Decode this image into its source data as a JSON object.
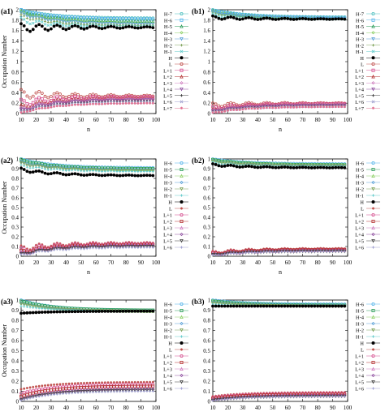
{
  "chart_data": [
    {
      "panel": "(a1)",
      "type": "scatter",
      "xlabel": "n",
      "ylabel": "Occupation Number",
      "xlim": [
        10,
        100
      ],
      "ylim": [
        0,
        2
      ],
      "xticks": [
        10,
        20,
        30,
        40,
        50,
        60,
        70,
        80,
        90,
        100
      ],
      "yticks": [
        0,
        0.2,
        0.4,
        0.6,
        0.8,
        1,
        1.2,
        1.4,
        1.6,
        1.8,
        2
      ],
      "ytick_labels": [
        "0",
        "0.2",
        "0.4",
        "0.6",
        "0.8",
        "1",
        "1.2",
        "1.4",
        "1.6",
        "1.8",
        "2"
      ],
      "legend": [
        "H-7",
        "H-6",
        "H-5",
        "H-4",
        "H-3",
        "H-2",
        "H-1",
        "H",
        "L",
        "L+1",
        "L+2",
        "L+3",
        "L+4",
        "L+5",
        "L+6",
        "L+7"
      ],
      "occupied": [
        {
          "name": "H-7",
          "start": 2.0,
          "end": 1.84,
          "amp": 0.0
        },
        {
          "name": "H-6",
          "start": 1.99,
          "end": 1.82,
          "amp": 0.01
        },
        {
          "name": "H-5",
          "start": 1.97,
          "end": 1.78,
          "amp": 0.01
        },
        {
          "name": "H-4",
          "start": 1.95,
          "end": 1.74,
          "amp": 0.02
        },
        {
          "name": "H-3",
          "start": 1.92,
          "end": 1.72,
          "amp": 0.02
        },
        {
          "name": "H-2",
          "start": 1.88,
          "end": 1.7,
          "amp": 0.03
        },
        {
          "name": "H-1",
          "start": 1.8,
          "end": 1.68,
          "amp": 0.05
        },
        {
          "name": "H",
          "start": 1.65,
          "end": 1.66,
          "amp": 0.08
        }
      ],
      "unoccupied": [
        {
          "name": "L",
          "start": 0.38,
          "end": 0.34,
          "amp": 0.08
        },
        {
          "name": "L+1",
          "start": 0.2,
          "end": 0.32,
          "amp": 0.07
        },
        {
          "name": "L+2",
          "start": 0.12,
          "end": 0.3,
          "amp": 0.05
        },
        {
          "name": "L+3",
          "start": 0.08,
          "end": 0.28,
          "amp": 0.04
        },
        {
          "name": "L+4",
          "start": 0.05,
          "end": 0.26,
          "amp": 0.03
        },
        {
          "name": "L+5",
          "start": 0.03,
          "end": 0.24,
          "amp": 0.02
        },
        {
          "name": "L+6",
          "start": 0.02,
          "end": 0.22,
          "amp": 0.02
        },
        {
          "name": "L+7",
          "start": 0.01,
          "end": 0.2,
          "amp": 0.01
        }
      ]
    },
    {
      "panel": "(b1)",
      "type": "scatter",
      "xlabel": "n",
      "ylabel": "",
      "xlim": [
        10,
        100
      ],
      "ylim": [
        0,
        2
      ],
      "xticks": [
        10,
        20,
        30,
        40,
        50,
        60,
        70,
        80,
        90,
        100
      ],
      "yticks": [
        0,
        0.2,
        0.4,
        0.6,
        0.8,
        1,
        1.2,
        1.4,
        1.6,
        1.8,
        2
      ],
      "ytick_labels": [
        "0",
        "0.2",
        "0.4",
        "0.6",
        "0.8",
        "1",
        "1.2",
        "1.4",
        "1.6",
        "1.8",
        "2"
      ],
      "legend": [
        "H-7",
        "H-6",
        "H-5",
        "H-4",
        "H-3",
        "H-2",
        "H-1",
        "H",
        "L",
        "L+1",
        "L+2",
        "L+3",
        "L+4",
        "L+5",
        "L+6",
        "L+7"
      ],
      "occupied": [
        {
          "name": "H-7",
          "start": 2.0,
          "end": 1.86,
          "amp": 0.0
        },
        {
          "name": "H-6",
          "start": 1.99,
          "end": 1.85,
          "amp": 0.0
        },
        {
          "name": "H-5",
          "start": 1.98,
          "end": 1.84,
          "amp": 0.01
        },
        {
          "name": "H-4",
          "start": 1.97,
          "end": 1.83,
          "amp": 0.01
        },
        {
          "name": "H-3",
          "start": 1.95,
          "end": 1.83,
          "amp": 0.01
        },
        {
          "name": "H-2",
          "start": 1.93,
          "end": 1.82,
          "amp": 0.01
        },
        {
          "name": "H-1",
          "start": 1.9,
          "end": 1.82,
          "amp": 0.02
        },
        {
          "name": "H",
          "start": 1.85,
          "end": 1.82,
          "amp": 0.03
        }
      ],
      "unoccupied": [
        {
          "name": "L",
          "start": 0.16,
          "end": 0.2,
          "amp": 0.04
        },
        {
          "name": "L+1",
          "start": 0.1,
          "end": 0.19,
          "amp": 0.03
        },
        {
          "name": "L+2",
          "start": 0.07,
          "end": 0.18,
          "amp": 0.02
        },
        {
          "name": "L+3",
          "start": 0.05,
          "end": 0.17,
          "amp": 0.02
        },
        {
          "name": "L+4",
          "start": 0.04,
          "end": 0.16,
          "amp": 0.01
        },
        {
          "name": "L+5",
          "start": 0.03,
          "end": 0.15,
          "amp": 0.01
        },
        {
          "name": "L+6",
          "start": 0.02,
          "end": 0.14,
          "amp": 0.01
        },
        {
          "name": "L+7",
          "start": 0.01,
          "end": 0.13,
          "amp": 0.01
        }
      ]
    },
    {
      "panel": "(a2)",
      "type": "scatter",
      "xlabel": "n",
      "ylabel": "Occupation Number",
      "xlim": [
        10,
        100
      ],
      "ylim": [
        0,
        1
      ],
      "xticks": [
        10,
        20,
        30,
        40,
        50,
        60,
        70,
        80,
        90,
        100
      ],
      "yticks": [
        0,
        0.1,
        0.2,
        0.3,
        0.4,
        0.5,
        0.6,
        0.7,
        0.8,
        0.9,
        1
      ],
      "ytick_labels": [
        "0",
        "0.1",
        "0.2",
        "0.3",
        "0.4",
        "0.5",
        "0.6",
        "0.7",
        "0.8",
        "0.9",
        "1"
      ],
      "legend": [
        "H-6",
        "H-5",
        "H-4",
        "H-3",
        "H-2",
        "H-1",
        "H",
        "L",
        "L+1",
        "L+2",
        "L+3",
        "L+4",
        "L+5",
        "L+6"
      ],
      "occupied": [
        {
          "name": "H-6",
          "start": 1.0,
          "end": 0.91,
          "amp": 0.0
        },
        {
          "name": "H-5",
          "start": 0.99,
          "end": 0.9,
          "amp": 0.005
        },
        {
          "name": "H-4",
          "start": 0.98,
          "end": 0.89,
          "amp": 0.005
        },
        {
          "name": "H-3",
          "start": 0.97,
          "end": 0.89,
          "amp": 0.008
        },
        {
          "name": "H-2",
          "start": 0.95,
          "end": 0.88,
          "amp": 0.01
        },
        {
          "name": "H-1",
          "start": 0.93,
          "end": 0.87,
          "amp": 0.01
        },
        {
          "name": "H",
          "start": 0.89,
          "end": 0.83,
          "amp": 0.015
        }
      ],
      "unoccupied": [
        {
          "name": "L",
          "start": 0.08,
          "end": 0.14,
          "amp": 0.03
        },
        {
          "name": "L+1",
          "start": 0.06,
          "end": 0.13,
          "amp": 0.03
        },
        {
          "name": "L+2",
          "start": 0.04,
          "end": 0.12,
          "amp": 0.02
        },
        {
          "name": "L+3",
          "start": 0.03,
          "end": 0.12,
          "amp": 0.02
        },
        {
          "name": "L+4",
          "start": 0.02,
          "end": 0.11,
          "amp": 0.015
        },
        {
          "name": "L+5",
          "start": 0.015,
          "end": 0.1,
          "amp": 0.01
        },
        {
          "name": "L+6",
          "start": 0.01,
          "end": 0.09,
          "amp": 0.01
        }
      ]
    },
    {
      "panel": "(b2)",
      "type": "scatter",
      "xlabel": "n",
      "ylabel": "",
      "xlim": [
        10,
        100
      ],
      "ylim": [
        0,
        1
      ],
      "xticks": [
        10,
        20,
        30,
        40,
        50,
        60,
        70,
        80,
        90,
        100
      ],
      "yticks": [
        0,
        0.1,
        0.2,
        0.3,
        0.4,
        0.5,
        0.6,
        0.7,
        0.8,
        0.9,
        1
      ],
      "ytick_labels": [
        "0",
        "0.1",
        "0.2",
        "0.3",
        "0.4",
        "0.5",
        "0.6",
        "0.7",
        "0.8",
        "0.9",
        "1"
      ],
      "legend": [
        "H-6",
        "H-5",
        "H-4",
        "H-3",
        "H-2",
        "H-1",
        "H",
        "L",
        "L+1",
        "L+2",
        "L+3",
        "L+4",
        "L+5",
        "L+6"
      ],
      "occupied": [
        {
          "name": "H-6",
          "start": 1.0,
          "end": 0.95,
          "amp": 0.0
        },
        {
          "name": "H-5",
          "start": 0.99,
          "end": 0.94,
          "amp": 0.003
        },
        {
          "name": "H-4",
          "start": 0.99,
          "end": 0.94,
          "amp": 0.004
        },
        {
          "name": "H-3",
          "start": 0.98,
          "end": 0.93,
          "amp": 0.005
        },
        {
          "name": "H-2",
          "start": 0.97,
          "end": 0.93,
          "amp": 0.006
        },
        {
          "name": "H-1",
          "start": 0.96,
          "end": 0.92,
          "amp": 0.008
        },
        {
          "name": "H",
          "start": 0.94,
          "end": 0.91,
          "amp": 0.01
        }
      ],
      "unoccupied": [
        {
          "name": "L",
          "start": 0.04,
          "end": 0.08,
          "amp": 0.015
        },
        {
          "name": "L+1",
          "start": 0.03,
          "end": 0.07,
          "amp": 0.012
        },
        {
          "name": "L+2",
          "start": 0.025,
          "end": 0.07,
          "amp": 0.01
        },
        {
          "name": "L+3",
          "start": 0.02,
          "end": 0.06,
          "amp": 0.01
        },
        {
          "name": "L+4",
          "start": 0.015,
          "end": 0.06,
          "amp": 0.008
        },
        {
          "name": "L+5",
          "start": 0.01,
          "end": 0.05,
          "amp": 0.006
        },
        {
          "name": "L+6",
          "start": 0.008,
          "end": 0.05,
          "amp": 0.005
        }
      ]
    },
    {
      "panel": "(a3)",
      "type": "scatter",
      "xlabel": "n",
      "ylabel": "Occupation Number",
      "xlim": [
        10,
        100
      ],
      "ylim": [
        0,
        1
      ],
      "xticks": [
        10,
        20,
        30,
        40,
        50,
        60,
        70,
        80,
        90,
        100
      ],
      "yticks": [
        0,
        0.1,
        0.2,
        0.3,
        0.4,
        0.5,
        0.6,
        0.7,
        0.8,
        0.9,
        1
      ],
      "ytick_labels": [
        "0",
        "0.1",
        "0.2",
        "0.3",
        "0.4",
        "0.5",
        "0.6",
        "0.7",
        "0.8",
        "0.9",
        "1"
      ],
      "legend": [
        "H-6",
        "H-5",
        "H-4",
        "H-3",
        "H-2",
        "H-1",
        "H",
        "L",
        "L+1",
        "L+2",
        "L+3",
        "L+4",
        "L+5",
        "L+6"
      ],
      "occupied": [
        {
          "name": "H-6",
          "start": 1.0,
          "end": 0.9,
          "amp": 0.0
        },
        {
          "name": "H-5",
          "start": 0.99,
          "end": 0.9,
          "amp": 0.0
        },
        {
          "name": "H-4",
          "start": 0.98,
          "end": 0.89,
          "amp": 0.0
        },
        {
          "name": "H-3",
          "start": 0.97,
          "end": 0.89,
          "amp": 0.0
        },
        {
          "name": "H-2",
          "start": 0.96,
          "end": 0.89,
          "amp": 0.0
        },
        {
          "name": "H-1",
          "start": 0.94,
          "end": 0.89,
          "amp": 0.0
        },
        {
          "name": "H",
          "start": 0.87,
          "end": 0.89,
          "amp": 0.0
        }
      ],
      "unoccupied": [
        {
          "name": "L",
          "start": 0.12,
          "end": 0.19,
          "amp": 0.0
        },
        {
          "name": "L+1",
          "start": 0.08,
          "end": 0.17,
          "amp": 0.0
        },
        {
          "name": "L+2",
          "start": 0.05,
          "end": 0.15,
          "amp": 0.0
        },
        {
          "name": "L+3",
          "start": 0.03,
          "end": 0.13,
          "amp": 0.0
        },
        {
          "name": "L+4",
          "start": 0.02,
          "end": 0.12,
          "amp": 0.0
        },
        {
          "name": "L+5",
          "start": 0.015,
          "end": 0.11,
          "amp": 0.0
        },
        {
          "name": "L+6",
          "start": 0.01,
          "end": 0.1,
          "amp": 0.0
        }
      ]
    },
    {
      "panel": "(b3)",
      "type": "scatter",
      "xlabel": "n",
      "ylabel": "",
      "xlim": [
        10,
        100
      ],
      "ylim": [
        0,
        1
      ],
      "xticks": [
        10,
        20,
        30,
        40,
        50,
        60,
        70,
        80,
        90,
        100
      ],
      "yticks": [
        0,
        0.1,
        0.2,
        0.3,
        0.4,
        0.5,
        0.6,
        0.7,
        0.8,
        0.9,
        1
      ],
      "ytick_labels": [
        "0",
        "0.1",
        "0.2",
        "0.3",
        "0.4",
        "0.5",
        "0.6",
        "0.7",
        "0.8",
        "0.9",
        "1"
      ],
      "legend": [
        "H-6",
        "H-5",
        "H-4",
        "H-3",
        "H-2",
        "H-1",
        "H",
        "L",
        "L+1",
        "L+2",
        "L+3",
        "L+4",
        "L+5",
        "L+6"
      ],
      "occupied": [
        {
          "name": "H-6",
          "start": 1.0,
          "end": 0.96,
          "amp": 0.0
        },
        {
          "name": "H-5",
          "start": 0.99,
          "end": 0.95,
          "amp": 0.0
        },
        {
          "name": "H-4",
          "start": 0.99,
          "end": 0.95,
          "amp": 0.0
        },
        {
          "name": "H-3",
          "start": 0.98,
          "end": 0.95,
          "amp": 0.0
        },
        {
          "name": "H-2",
          "start": 0.97,
          "end": 0.94,
          "amp": 0.0
        },
        {
          "name": "H-1",
          "start": 0.96,
          "end": 0.94,
          "amp": 0.0
        },
        {
          "name": "H",
          "start": 0.94,
          "end": 0.94,
          "amp": 0.0
        }
      ],
      "unoccupied": [
        {
          "name": "L",
          "start": 0.05,
          "end": 0.09,
          "amp": 0.0
        },
        {
          "name": "L+1",
          "start": 0.04,
          "end": 0.08,
          "amp": 0.0
        },
        {
          "name": "L+2",
          "start": 0.03,
          "end": 0.07,
          "amp": 0.0
        },
        {
          "name": "L+3",
          "start": 0.02,
          "end": 0.06,
          "amp": 0.0
        },
        {
          "name": "L+4",
          "start": 0.015,
          "end": 0.06,
          "amp": 0.0
        },
        {
          "name": "L+5",
          "start": 0.01,
          "end": 0.05,
          "amp": 0.0
        },
        {
          "name": "L+6",
          "start": 0.008,
          "end": 0.05,
          "amp": 0.0
        }
      ]
    }
  ],
  "series_colors": {
    "H-7": "#4dbfbf",
    "H-6": "#56b4e9",
    "H-5": "#2b9d5a",
    "H-4": "#8fd16a",
    "H-3": "#5aa0d8",
    "H-2": "#7fa35a",
    "H-1": "#66cccc",
    "H": "#000000",
    "L": "#c0504d",
    "L+1": "#d64f8f",
    "L+2": "#b33030",
    "L+3": "#d080c0",
    "L+4": "#9050a0",
    "L+5": "#404040",
    "L+6": "#a0a0d0",
    "L+7": "#e07090"
  }
}
